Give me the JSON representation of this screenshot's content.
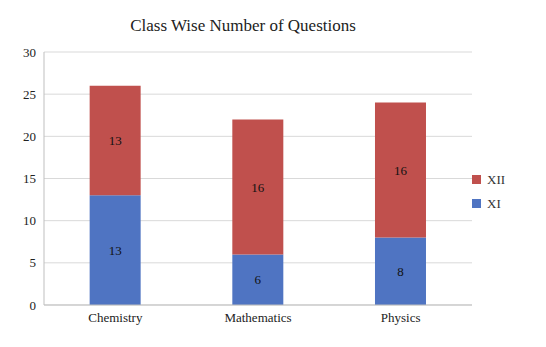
{
  "chart_data": {
    "type": "bar",
    "title": "Class Wise Number of Questions",
    "categories": [
      "Chemistry",
      "Mathematics",
      "Physics"
    ],
    "series": [
      {
        "name": "XI",
        "color": "#4f74c2",
        "values": [
          13,
          6,
          8
        ]
      },
      {
        "name": "XII",
        "color": "#c0504d",
        "values": [
          13,
          16,
          16
        ]
      }
    ],
    "ylim": [
      0,
      30
    ],
    "yticks": [
      0,
      5,
      10,
      15,
      20,
      25,
      30
    ],
    "stacked": true,
    "data_labels": true,
    "grid": true,
    "legend": "right"
  }
}
